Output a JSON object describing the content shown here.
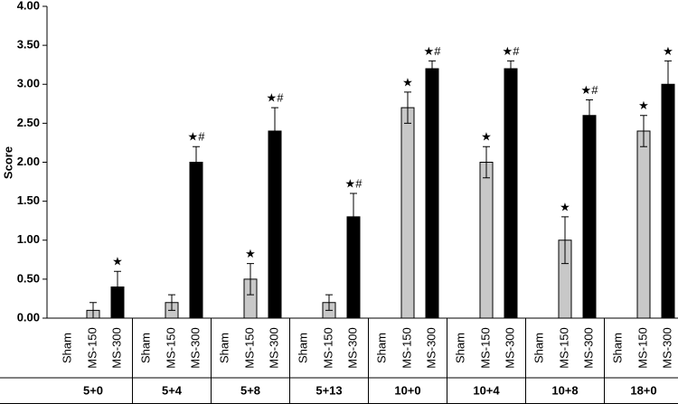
{
  "chart_data": {
    "type": "bar",
    "y_label": "Score",
    "categories": [
      "5+0",
      "5+4",
      "5+8",
      "5+13",
      "10+0",
      "10+4",
      "10+8",
      "18+0"
    ],
    "series": [
      {
        "name": "Sham",
        "color": "#ffffff",
        "values": [
          0,
          0,
          0,
          0,
          0,
          0,
          0,
          0
        ]
      },
      {
        "name": "MS-150",
        "color": "#c8c8c8",
        "values": [
          0.1,
          0.2,
          0.5,
          0.2,
          2.7,
          2.0,
          1.0,
          2.4
        ],
        "errors": [
          0.1,
          0.1,
          0.2,
          0.1,
          0.2,
          0.2,
          0.3,
          0.2
        ],
        "annotations": [
          null,
          null,
          "★",
          null,
          "★",
          "★",
          "★",
          "★"
        ]
      },
      {
        "name": "MS-300",
        "color": "#000000",
        "values": [
          0.4,
          2.0,
          2.4,
          1.3,
          3.2,
          3.2,
          2.6,
          3.0
        ],
        "errors": [
          0.2,
          0.2,
          0.3,
          0.3,
          0.1,
          0.1,
          0.2,
          0.3
        ],
        "annotations": [
          "★",
          "★#",
          "★#",
          "★#",
          "★#",
          "★#",
          "★#",
          "★"
        ]
      }
    ],
    "ylim": [
      0,
      4
    ],
    "yticks": [
      {
        "value": 0,
        "label": "0.00"
      },
      {
        "value": 0.5,
        "label": "0.50"
      },
      {
        "value": 1,
        "label": "1.00"
      },
      {
        "value": 1.5,
        "label": "1.50"
      },
      {
        "value": 2,
        "label": "2.00"
      },
      {
        "value": 2.5,
        "label": "2.50"
      },
      {
        "value": 3,
        "label": "3.00"
      },
      {
        "value": 3.5,
        "label": "3.50"
      },
      {
        "value": 4,
        "label": "4.00"
      }
    ]
  }
}
